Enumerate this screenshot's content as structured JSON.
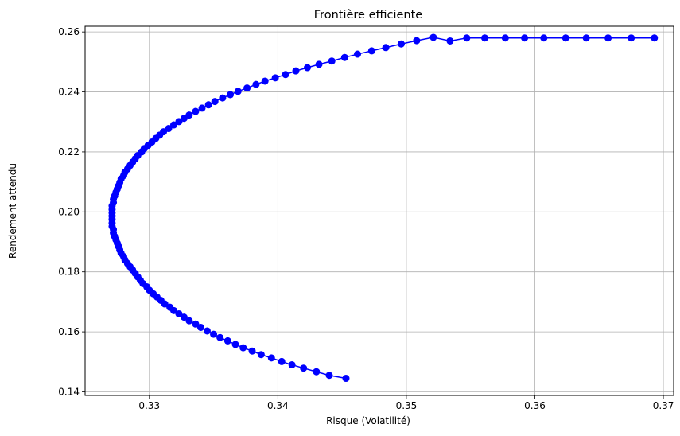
{
  "chart_data": {
    "type": "line",
    "title": "Frontière efficiente",
    "xlabel": "Risque (Volatilité)",
    "ylabel": "Rendement attendu",
    "xlim": [
      0.325,
      0.3708
    ],
    "ylim": [
      0.1388,
      0.2619
    ],
    "grid": true,
    "marker": "circle",
    "color": "#0000ff",
    "xticks": [
      0.33,
      0.34,
      0.35,
      0.36,
      0.37
    ],
    "xtick_labels": [
      "0.33",
      "0.34",
      "0.35",
      "0.36",
      "0.37"
    ],
    "yticks": [
      0.14,
      0.16,
      0.18,
      0.2,
      0.22,
      0.24,
      0.26
    ],
    "ytick_labels": [
      "0.14",
      "0.16",
      "0.18",
      "0.20",
      "0.22",
      "0.24",
      "0.26"
    ],
    "series": [
      {
        "x": [
          0.3453,
          0.344,
          0.343,
          0.342,
          0.3411,
          0.3403,
          0.3395,
          0.3387,
          0.338,
          0.3373,
          0.3367,
          0.3361,
          0.3355,
          0.335,
          0.3345,
          0.334,
          0.3336,
          0.3331,
          0.3327,
          0.3323,
          0.3319,
          0.3316,
          0.3312,
          0.3309,
          0.3306,
          0.3303,
          0.33,
          0.3298,
          0.3295,
          0.3293,
          0.3291,
          0.3289,
          0.3287,
          0.3285,
          0.3283,
          0.3281,
          0.328,
          0.3278,
          0.3277,
          0.3276,
          0.3275,
          0.3274,
          0.3273,
          0.3272,
          0.3272,
          0.3271,
          0.3271,
          0.3271,
          0.3271,
          0.3271,
          0.3271,
          0.3271,
          0.3272,
          0.3272,
          0.3273,
          0.3274,
          0.3275,
          0.3276,
          0.3277,
          0.3278,
          0.328,
          0.3281,
          0.3283,
          0.3285,
          0.3287,
          0.3289,
          0.3291,
          0.3294,
          0.3296,
          0.3299,
          0.3302,
          0.3305,
          0.3308,
          0.3311,
          0.3315,
          0.3319,
          0.3323,
          0.3327,
          0.3331,
          0.3336,
          0.3341,
          0.3346,
          0.3351,
          0.3357,
          0.3363,
          0.3369,
          0.3376,
          0.3383,
          0.339,
          0.3398,
          0.3406,
          0.3414,
          0.3423,
          0.3432,
          0.3442,
          0.3452,
          0.3462,
          0.3473,
          0.3484,
          0.3496,
          0.3508,
          0.3521,
          0.3534,
          0.3547,
          0.3561,
          0.3577,
          0.3592,
          0.3607,
          0.3624,
          0.364,
          0.3657,
          0.3675,
          0.3693
        ],
        "y": [
          0.1445,
          0.1455,
          0.1467,
          0.1479,
          0.149,
          0.1501,
          0.1513,
          0.1524,
          0.1536,
          0.1547,
          0.1558,
          0.157,
          0.1581,
          0.1592,
          0.1603,
          0.1615,
          0.1626,
          0.1637,
          0.1649,
          0.166,
          0.1671,
          0.1682,
          0.1693,
          0.1705,
          0.1716,
          0.1727,
          0.1739,
          0.175,
          0.1761,
          0.1772,
          0.1783,
          0.1795,
          0.1806,
          0.1817,
          0.1828,
          0.184,
          0.1851,
          0.1862,
          0.1873,
          0.1885,
          0.1896,
          0.1907,
          0.1918,
          0.193,
          0.1941,
          0.1952,
          0.1963,
          0.1975,
          0.1986,
          0.1997,
          0.2008,
          0.202,
          0.2031,
          0.2042,
          0.2053,
          0.2065,
          0.2076,
          0.2087,
          0.2098,
          0.211,
          0.2121,
          0.2132,
          0.2143,
          0.2155,
          0.2166,
          0.2177,
          0.2188,
          0.22,
          0.2211,
          0.2222,
          0.2233,
          0.2245,
          0.2256,
          0.2267,
          0.2278,
          0.229,
          0.2301,
          0.2312,
          0.2323,
          0.2335,
          0.2346,
          0.2357,
          0.2368,
          0.238,
          0.2391,
          0.2402,
          0.2413,
          0.2425,
          0.2436,
          0.2447,
          0.2458,
          0.247,
          0.2481,
          0.2492,
          0.2503,
          0.2515,
          0.2526,
          0.2537,
          0.2548,
          0.256,
          0.2571,
          0.2582,
          0.257,
          0.258,
          0.258,
          0.258,
          0.258,
          0.258,
          0.258,
          0.258,
          0.258,
          0.258,
          0.258
        ]
      }
    ]
  }
}
